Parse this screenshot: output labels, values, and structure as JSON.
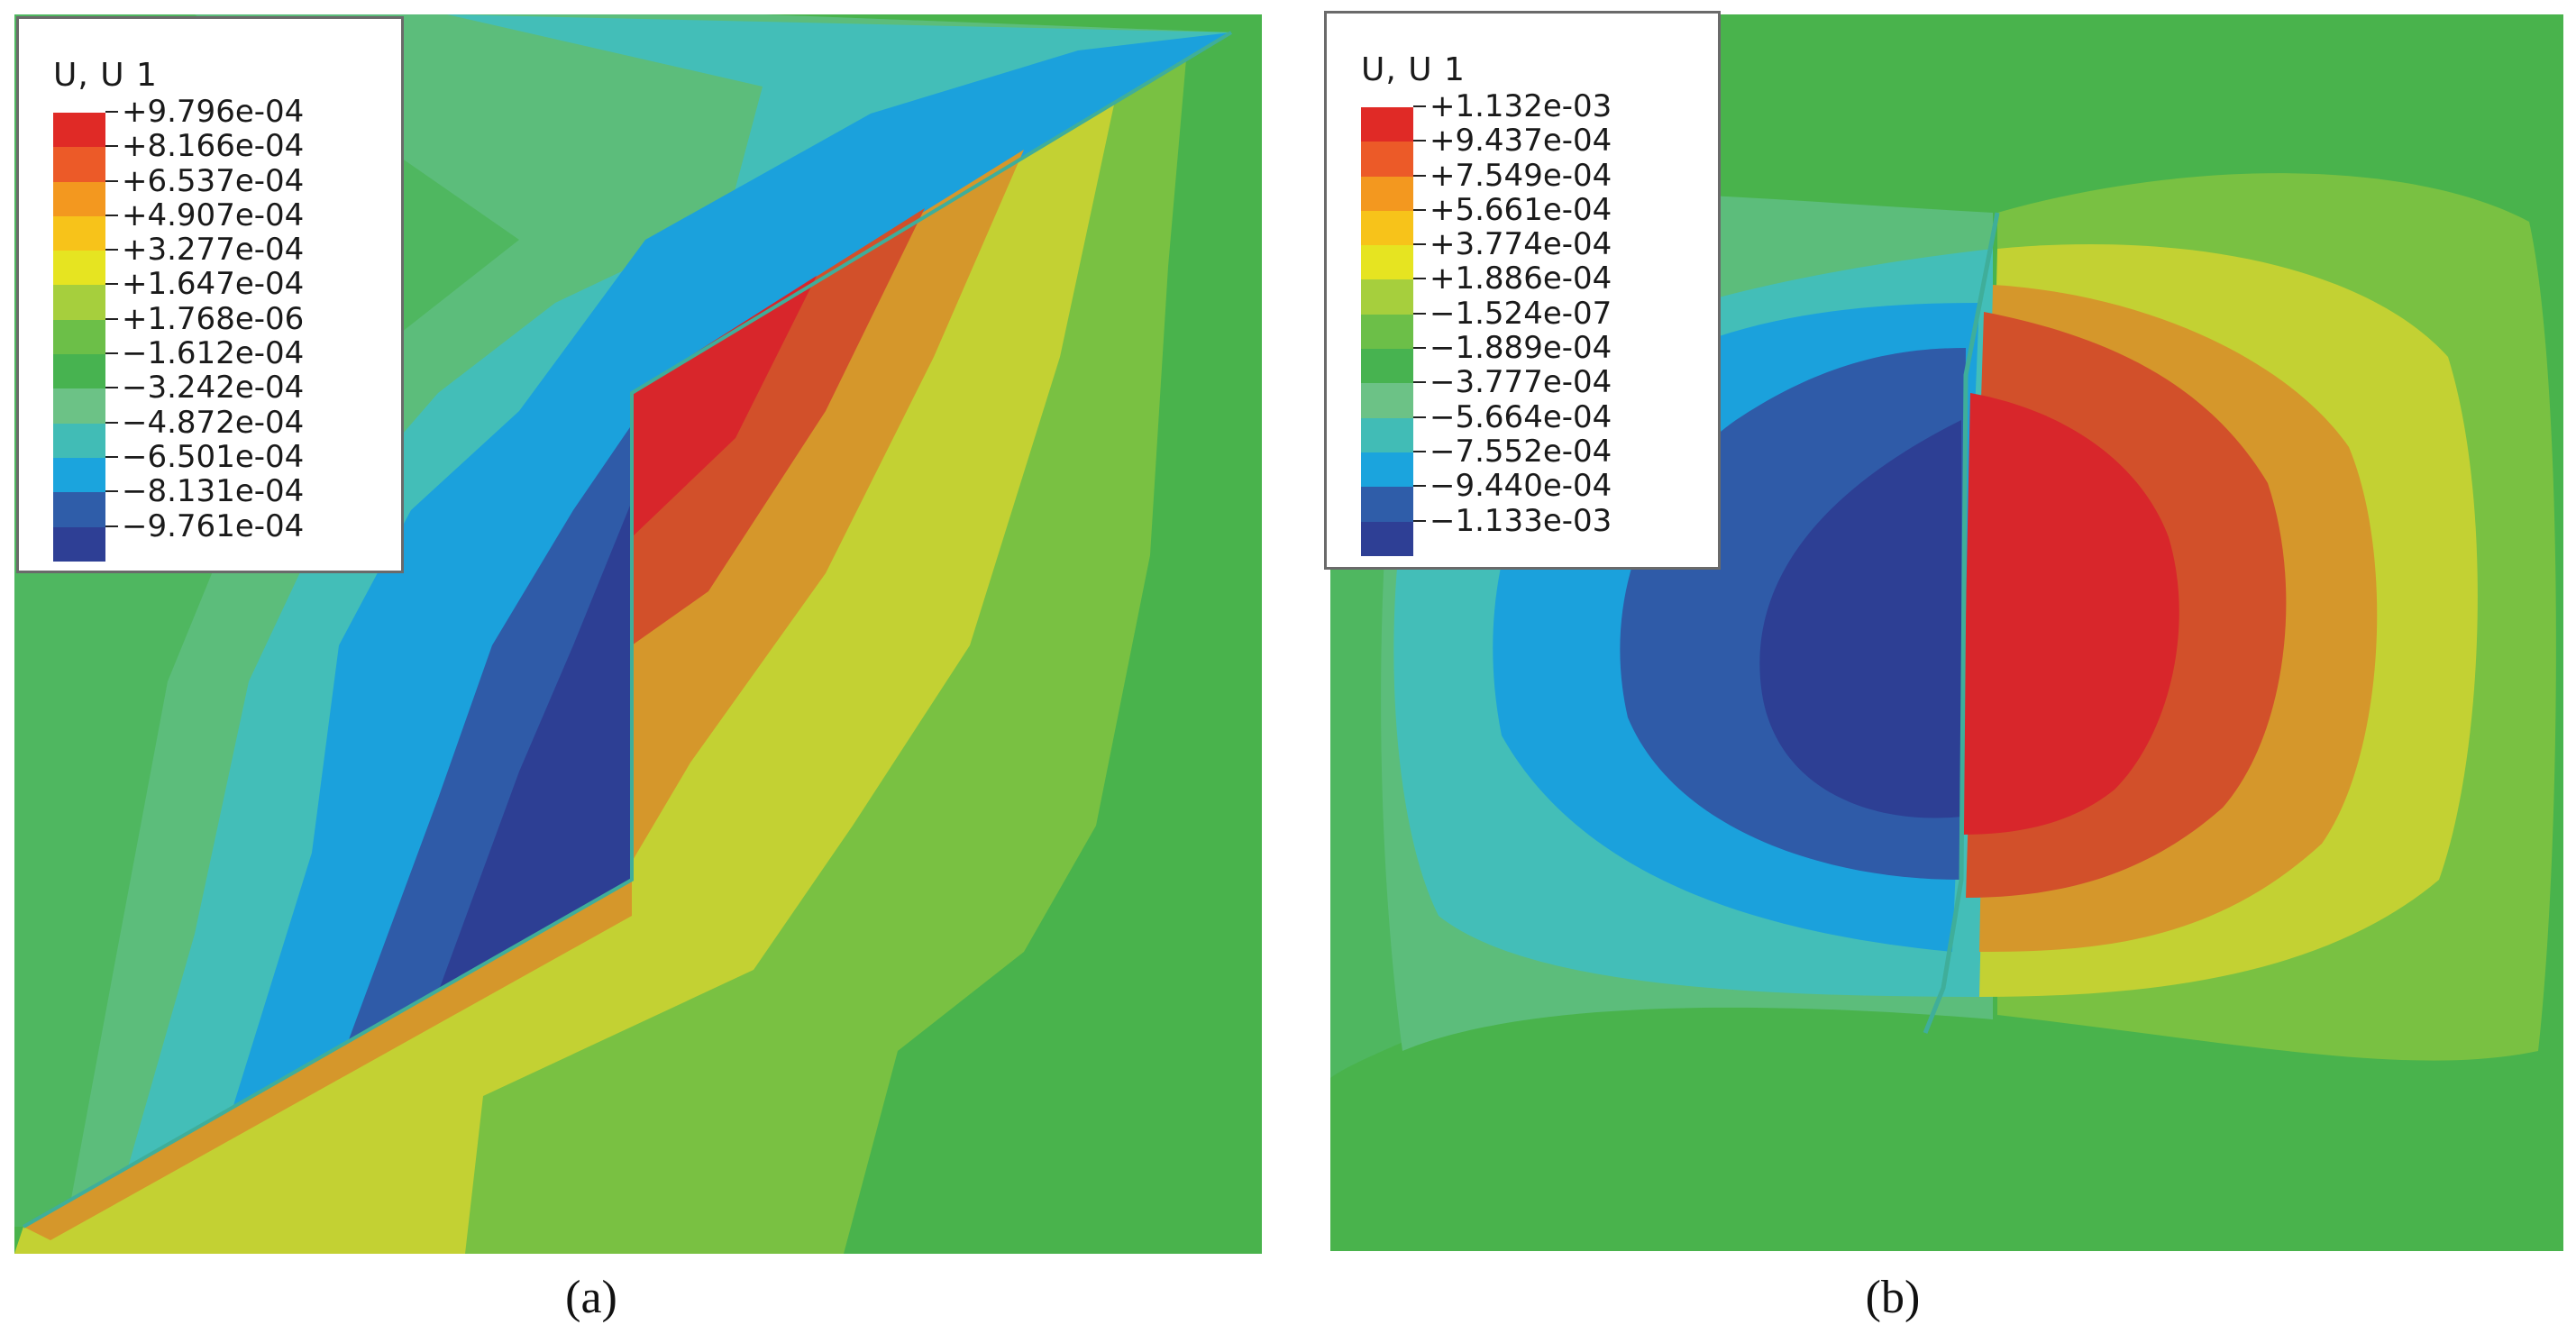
{
  "panel_a": {
    "legend_title": "U, U 1",
    "caption": "(a)",
    "legend": [
      {
        "label": "+9.796e-04",
        "color": "#e02a26"
      },
      {
        "label": "+8.166e-04",
        "color": "#ec5a28"
      },
      {
        "label": "+6.537e-04",
        "color": "#f3981f"
      },
      {
        "label": "+4.907e-04",
        "color": "#f7c31a"
      },
      {
        "label": "+3.277e-04",
        "color": "#e6e421"
      },
      {
        "label": "+1.647e-04",
        "color": "#a6cf3d"
      },
      {
        "label": "+1.768e-06",
        "color": "#6cbf48"
      },
      {
        "label": "−1.612e-04",
        "color": "#47b350"
      },
      {
        "label": "−3.242e-04",
        "color": "#6cc286"
      },
      {
        "label": "−4.872e-04",
        "color": "#41bcb6"
      },
      {
        "label": "−6.501e-04",
        "color": "#1ba4dd"
      },
      {
        "label": "−8.131e-04",
        "color": "#2f5da9"
      },
      {
        "label": "−9.761e-04",
        "color": "#2e3f95"
      }
    ]
  },
  "panel_b": {
    "legend_title": "U, U 1",
    "caption": "(b)",
    "legend": [
      {
        "label": "+1.132e-03",
        "color": "#e02a26"
      },
      {
        "label": "+9.437e-04",
        "color": "#ec5a28"
      },
      {
        "label": "+7.549e-04",
        "color": "#f3981f"
      },
      {
        "label": "+5.661e-04",
        "color": "#f7c31a"
      },
      {
        "label": "+3.774e-04",
        "color": "#e6e421"
      },
      {
        "label": "+1.886e-04",
        "color": "#a6cf3d"
      },
      {
        "label": "−1.524e-07",
        "color": "#6cbf48"
      },
      {
        "label": "−1.889e-04",
        "color": "#47b350"
      },
      {
        "label": "−3.777e-04",
        "color": "#6cc286"
      },
      {
        "label": "−5.664e-04",
        "color": "#41bcb6"
      },
      {
        "label": "−7.552e-04",
        "color": "#1ba4dd"
      },
      {
        "label": "−9.440e-04",
        "color": "#2f5da9"
      },
      {
        "label": "−1.133e-03",
        "color": "#2e3f95"
      }
    ]
  }
}
